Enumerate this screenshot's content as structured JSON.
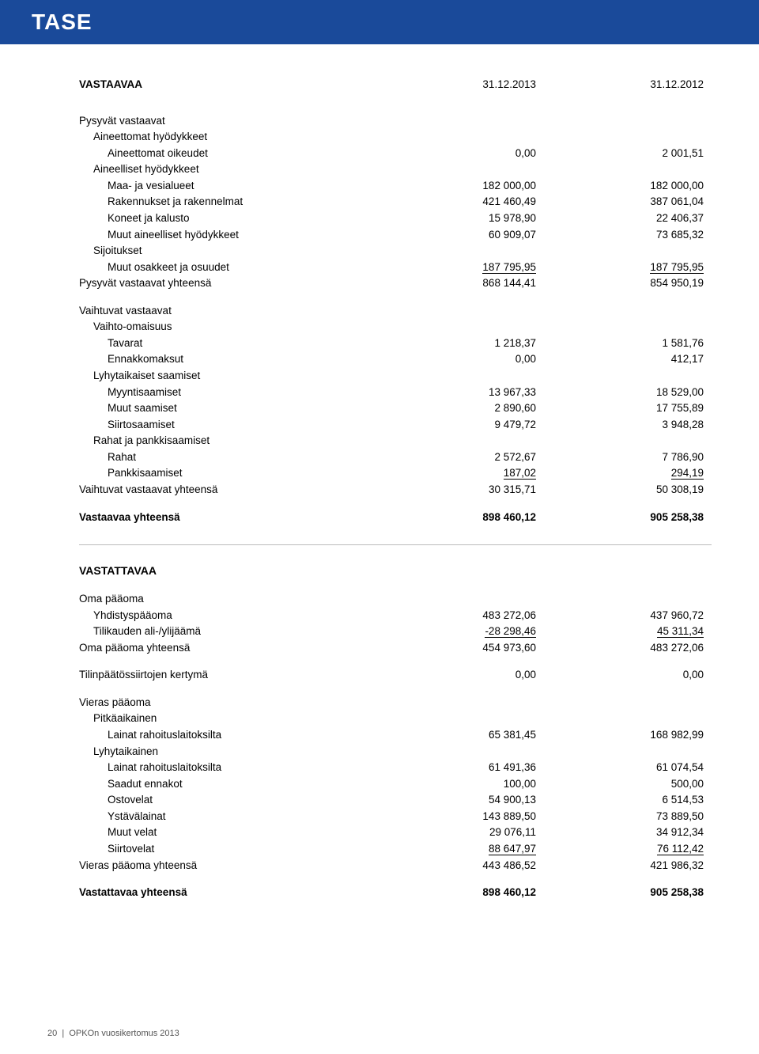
{
  "banner": {
    "title": "TASE"
  },
  "footer": {
    "page": "20",
    "sep": "|",
    "text": "OPKOn vuosikertomus 2013"
  },
  "cols": {
    "c2013": "31.12.2013",
    "c2012": "31.12.2012"
  },
  "vastaavaa": {
    "title": "VASTAAVAA",
    "pysyvat": {
      "title": "Pysyvät vastaavat",
      "aineettomat": "Aineettomat hyödykkeet",
      "aineettomat_oikeudet": {
        "label": "Aineettomat oikeudet",
        "v1": "0,00",
        "v2": "2 001,51"
      },
      "aineelliset": "Aineelliset hyödykkeet",
      "maa": {
        "label": "Maa- ja vesialueet",
        "v1": "182 000,00",
        "v2": "182 000,00"
      },
      "rakennukset": {
        "label": "Rakennukset ja rakennelmat",
        "v1": "421 460,49",
        "v2": "387 061,04"
      },
      "koneet": {
        "label": "Koneet ja kalusto",
        "v1": "15 978,90",
        "v2": "22 406,37"
      },
      "muut_aineelliset": {
        "label": "Muut aineelliset hyödykkeet",
        "v1": "60 909,07",
        "v2": "73 685,32"
      },
      "sijoitukset": "Sijoitukset",
      "osakkeet": {
        "label": "Muut osakkeet ja osuudet",
        "v1": "187 795,95",
        "v2": "187 795,95"
      },
      "yhteensa": {
        "label": "Pysyvät vastaavat yhteensä",
        "v1": "868 144,41",
        "v2": "854 950,19"
      }
    },
    "vaihtuvat": {
      "title": "Vaihtuvat vastaavat",
      "vaihto_omaisuus": "Vaihto-omaisuus",
      "tavarat": {
        "label": "Tavarat",
        "v1": "1 218,37",
        "v2": "1 581,76"
      },
      "ennakkomaksut": {
        "label": "Ennakkomaksut",
        "v1": "0,00",
        "v2": "412,17"
      },
      "lyhytaikaiset": "Lyhytaikaiset saamiset",
      "myynti": {
        "label": "Myyntisaamiset",
        "v1": "13 967,33",
        "v2": "18 529,00"
      },
      "muut_saamiset": {
        "label": "Muut saamiset",
        "v1": "2 890,60",
        "v2": "17 755,89"
      },
      "siirto": {
        "label": "Siirtosaamiset",
        "v1": "9 479,72",
        "v2": "3 948,28"
      },
      "rahat_pankki": "Rahat ja pankkisaamiset",
      "rahat": {
        "label": "Rahat",
        "v1": "2 572,67",
        "v2": "7 786,90"
      },
      "pankki": {
        "label": "Pankkisaamiset",
        "v1": "187,02",
        "v2": "294,19"
      },
      "yhteensa": {
        "label": "Vaihtuvat vastaavat yhteensä",
        "v1": "30 315,71",
        "v2": "50 308,19"
      }
    },
    "total": {
      "label": "Vastaavaa yhteensä",
      "v1": "898 460,12",
      "v2": "905 258,38"
    }
  },
  "vastattavaa": {
    "title": "VASTATTAVAA",
    "oma": {
      "title": "Oma pääoma",
      "yhdistys": {
        "label": "Yhdistyspääoma",
        "v1": "483 272,06",
        "v2": "437 960,72"
      },
      "ali_yli": {
        "label": "Tilikauden ali-/ylijäämä",
        "v1": "-28 298,46",
        "v2": "45 311,34"
      },
      "yhteensa": {
        "label": "Oma pääoma yhteensä",
        "v1": "454 973,60",
        "v2": "483 272,06"
      }
    },
    "tilinpaat": {
      "label": "Tilinpäätössiirtojen kertymä",
      "v1": "0,00",
      "v2": "0,00"
    },
    "vieras": {
      "title": "Vieras pääoma",
      "pitka": "Pitkäaikainen",
      "pitka_lainat": {
        "label": "Lainat rahoituslaitoksilta",
        "v1": "65 381,45",
        "v2": "168 982,99"
      },
      "lyhyt": "Lyhytaikainen",
      "lyhyt_lainat": {
        "label": "Lainat rahoituslaitoksilta",
        "v1": "61 491,36",
        "v2": "61 074,54"
      },
      "ennakot": {
        "label": "Saadut ennakot",
        "v1": "100,00",
        "v2": "500,00"
      },
      "ostovelat": {
        "label": "Ostovelat",
        "v1": "54 900,13",
        "v2": "6 514,53"
      },
      "ystavalainat": {
        "label": "Ystävälainat",
        "v1": "143 889,50",
        "v2": "73 889,50"
      },
      "muut_velat": {
        "label": "Muut velat",
        "v1": "29 076,11",
        "v2": "34 912,34"
      },
      "siirtovelat": {
        "label": "Siirtovelat",
        "v1": "88 647,97",
        "v2": "76 112,42"
      },
      "yhteensa": {
        "label": "Vieras pääoma yhteensä",
        "v1": "443 486,52",
        "v2": "421 986,32"
      }
    },
    "total": {
      "label": "Vastattavaa yhteensä",
      "v1": "898 460,12",
      "v2": "905 258,38"
    }
  }
}
